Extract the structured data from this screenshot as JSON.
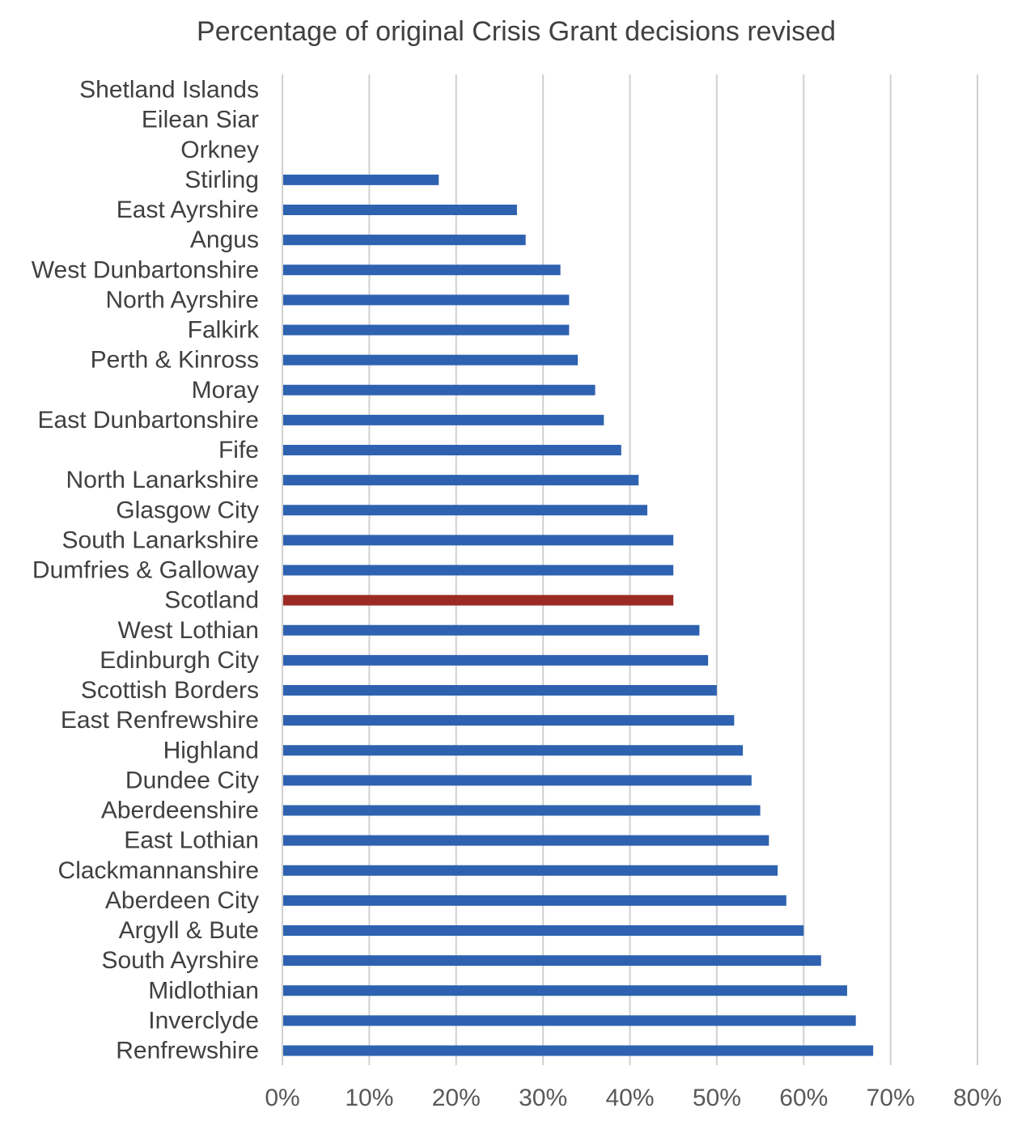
{
  "chart_data": {
    "type": "bar",
    "orientation": "horizontal",
    "title": "Percentage of original Crisis Grant decisions revised",
    "xlabel": "",
    "ylabel": "",
    "xlim": [
      0,
      80
    ],
    "tick_values": [
      0,
      10,
      20,
      30,
      40,
      50,
      60,
      70,
      80
    ],
    "tick_labels": [
      "0%",
      "10%",
      "20%",
      "30%",
      "40%",
      "50%",
      "60%",
      "70%",
      "80%"
    ],
    "grid": "vertical",
    "legend": "none",
    "categories": [
      "Shetland Islands",
      "Eilean Siar",
      "Orkney",
      "Stirling",
      "East Ayrshire",
      "Angus",
      "West Dunbartonshire",
      "North Ayrshire",
      "Falkirk",
      "Perth & Kinross",
      "Moray",
      "East Dunbartonshire",
      "Fife",
      "North Lanarkshire",
      "Glasgow City",
      "South Lanarkshire",
      "Dumfries & Galloway",
      "Scotland",
      "West Lothian",
      "Edinburgh City",
      "Scottish Borders",
      "East Renfrewshire",
      "Highland",
      "Dundee City",
      "Aberdeenshire",
      "East Lothian",
      "Clackmannanshire",
      "Aberdeen City",
      "Argyll & Bute",
      "South Ayrshire",
      "Midlothian",
      "Inverclyde",
      "Renfrewshire"
    ],
    "values": [
      0,
      0,
      0,
      18,
      27,
      28,
      32,
      33,
      33,
      34,
      36,
      37,
      39,
      41,
      42,
      45,
      45,
      45,
      48,
      49,
      50,
      52,
      53,
      54,
      55,
      56,
      57,
      58,
      60,
      62,
      65,
      66,
      68
    ],
    "colors": {
      "default": "#2e62b0",
      "highlight": "#9c2a24",
      "highlight_category": "Scotland"
    }
  }
}
